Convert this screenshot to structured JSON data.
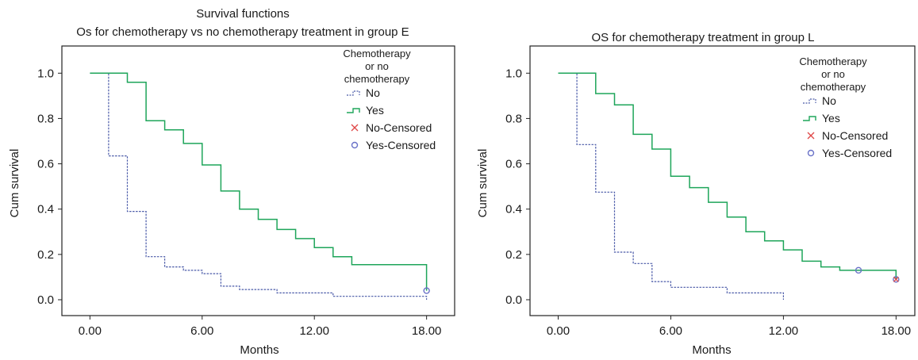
{
  "chart_data": [
    {
      "type": "line",
      "title": "Survival functions",
      "subtitle": "Os for chemotherapy vs no chemotherapy treatment in group E",
      "xlabel": "Months",
      "ylabel": "Cum survival",
      "xlim": [
        -1.5,
        19.5
      ],
      "ylim": [
        -0.07,
        1.12
      ],
      "xticks": [
        0,
        6,
        12,
        18
      ],
      "xtick_labels": [
        "0.00",
        "6.00",
        "12.00",
        "18.00"
      ],
      "yticks": [
        0,
        0.2,
        0.4,
        0.6,
        0.8,
        1.0
      ],
      "ytick_labels": [
        "0.0",
        "0.2",
        "0.4",
        "0.6",
        "0.8",
        "1.0"
      ],
      "grid": false,
      "legend_position": "top-right",
      "legend_title": [
        "Chemotherapy",
        "or no",
        "chemotherapy"
      ],
      "legend_entries": [
        "No",
        "Yes",
        "No-Censored",
        "Yes-Censored"
      ],
      "series": [
        {
          "name": "No",
          "color": "#4a5aa8",
          "style": "dashed",
          "x": [
            0,
            1,
            1,
            2,
            2,
            3,
            3,
            4,
            4,
            5,
            5,
            6,
            6,
            7,
            7,
            8,
            8,
            10,
            10,
            13,
            13,
            18,
            18
          ],
          "y": [
            1.0,
            1.0,
            0.635,
            0.635,
            0.39,
            0.39,
            0.19,
            0.19,
            0.145,
            0.145,
            0.13,
            0.13,
            0.115,
            0.115,
            0.06,
            0.06,
            0.045,
            0.045,
            0.03,
            0.03,
            0.015,
            0.015,
            0.0
          ]
        },
        {
          "name": "Yes",
          "color": "#1ea55a",
          "style": "solid",
          "x": [
            0,
            2,
            2,
            3,
            3,
            4,
            4,
            5,
            5,
            6,
            6,
            7,
            7,
            8,
            8,
            9,
            9,
            10,
            10,
            11,
            11,
            12,
            12,
            13,
            13,
            14,
            14,
            18,
            18
          ],
          "y": [
            1.0,
            1.0,
            0.96,
            0.96,
            0.79,
            0.79,
            0.75,
            0.75,
            0.69,
            0.69,
            0.595,
            0.595,
            0.48,
            0.48,
            0.4,
            0.4,
            0.355,
            0.355,
            0.31,
            0.31,
            0.27,
            0.27,
            0.23,
            0.23,
            0.19,
            0.19,
            0.155,
            0.155,
            0.04
          ]
        }
      ],
      "censored": [
        {
          "name": "Yes-Censored",
          "x": 18,
          "y": 0.04
        }
      ]
    },
    {
      "type": "line",
      "title": "OS for chemotherapy treatment in group L",
      "xlabel": "Months",
      "ylabel": "Cum survival",
      "xlim": [
        -1.5,
        19.0
      ],
      "ylim": [
        -0.07,
        1.12
      ],
      "xticks": [
        0,
        6,
        12,
        18
      ],
      "xtick_labels": [
        "0.00",
        "6.00",
        "12.00",
        "18.00"
      ],
      "yticks": [
        0,
        0.2,
        0.4,
        0.6,
        0.8,
        1.0
      ],
      "ytick_labels": [
        "0.0",
        "0.2",
        "0.4",
        "0.6",
        "0.8",
        "1.0"
      ],
      "grid": false,
      "legend_position": "top-right",
      "legend_title": [
        "Chemotherapy",
        "or no",
        "chemotherapy"
      ],
      "legend_entries": [
        "No",
        "Yes",
        "No-Censored",
        "Yes-Censored"
      ],
      "series": [
        {
          "name": "No",
          "color": "#4a5aa8",
          "style": "dashed",
          "x": [
            0,
            1,
            1,
            2,
            2,
            3,
            3,
            4,
            4,
            5,
            5,
            6,
            6,
            9,
            9,
            12,
            12
          ],
          "y": [
            1.0,
            1.0,
            0.685,
            0.685,
            0.475,
            0.475,
            0.21,
            0.21,
            0.16,
            0.16,
            0.08,
            0.08,
            0.055,
            0.055,
            0.03,
            0.03,
            0.0
          ]
        },
        {
          "name": "Yes",
          "color": "#1ea55a",
          "style": "solid",
          "x": [
            0,
            2,
            2,
            3,
            3,
            4,
            4,
            5,
            5,
            6,
            6,
            7,
            7,
            8,
            8,
            9,
            9,
            10,
            10,
            11,
            11,
            12,
            12,
            13,
            13,
            14,
            14,
            15,
            15,
            18,
            18
          ],
          "y": [
            1.0,
            1.0,
            0.91,
            0.91,
            0.86,
            0.86,
            0.73,
            0.73,
            0.665,
            0.665,
            0.545,
            0.545,
            0.495,
            0.495,
            0.43,
            0.43,
            0.365,
            0.365,
            0.3,
            0.3,
            0.26,
            0.26,
            0.22,
            0.22,
            0.17,
            0.17,
            0.145,
            0.145,
            0.13,
            0.13,
            0.09
          ]
        }
      ],
      "censored": [
        {
          "name": "Yes-Censored",
          "x": 16,
          "y": 0.13
        },
        {
          "name": "Yes-Censored",
          "x": 18,
          "y": 0.09
        },
        {
          "name": "No-Censored",
          "x": 18,
          "y": 0.09
        }
      ]
    }
  ]
}
